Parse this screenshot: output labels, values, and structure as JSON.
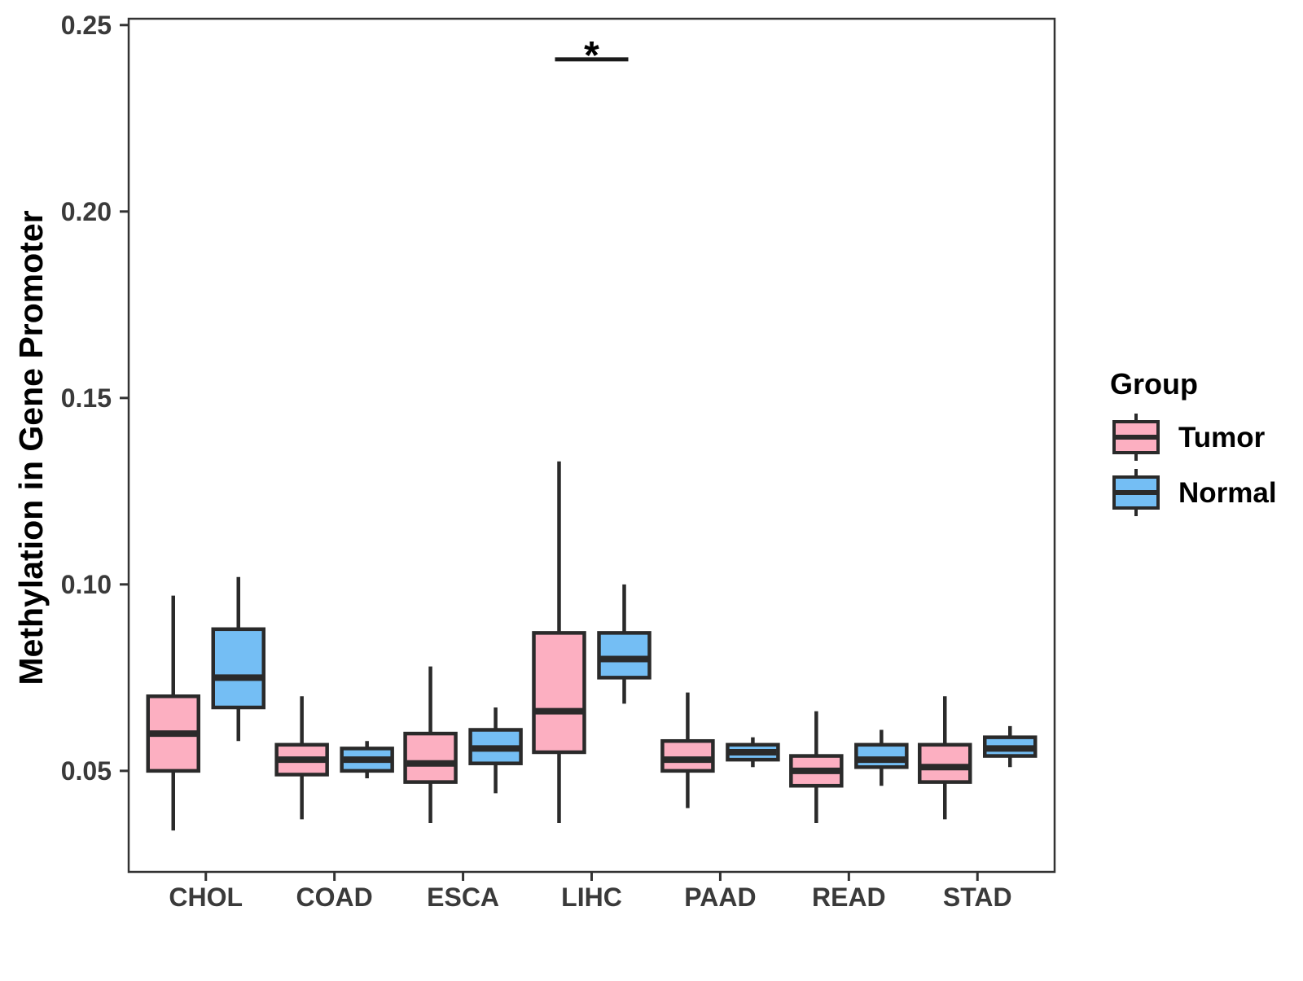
{
  "chart_data": {
    "type": "boxplot",
    "title": "",
    "xlabel": "",
    "ylabel": "Methylation in Gene Promoter",
    "categories": [
      "CHOL",
      "COAD",
      "ESCA",
      "LIHC",
      "PAAD",
      "READ",
      "STAD"
    ],
    "series": [
      {
        "name": "Tumor",
        "fill": "#FCAFC1",
        "boxes": [
          {
            "low": 0.034,
            "q1": 0.05,
            "median": 0.06,
            "q3": 0.07,
            "high": 0.097
          },
          {
            "low": 0.037,
            "q1": 0.049,
            "median": 0.053,
            "q3": 0.057,
            "high": 0.07
          },
          {
            "low": 0.036,
            "q1": 0.047,
            "median": 0.052,
            "q3": 0.06,
            "high": 0.078
          },
          {
            "low": 0.036,
            "q1": 0.055,
            "median": 0.066,
            "q3": 0.087,
            "high": 0.133
          },
          {
            "low": 0.04,
            "q1": 0.05,
            "median": 0.053,
            "q3": 0.058,
            "high": 0.071
          },
          {
            "low": 0.036,
            "q1": 0.046,
            "median": 0.05,
            "q3": 0.054,
            "high": 0.066
          },
          {
            "low": 0.037,
            "q1": 0.047,
            "median": 0.051,
            "q3": 0.057,
            "high": 0.07
          }
        ]
      },
      {
        "name": "Normal",
        "fill": "#74BEF4",
        "boxes": [
          {
            "low": 0.058,
            "q1": 0.067,
            "median": 0.075,
            "q3": 0.088,
            "high": 0.102
          },
          {
            "low": 0.048,
            "q1": 0.05,
            "median": 0.053,
            "q3": 0.056,
            "high": 0.058
          },
          {
            "low": 0.044,
            "q1": 0.052,
            "median": 0.056,
            "q3": 0.061,
            "high": 0.067
          },
          {
            "low": 0.068,
            "q1": 0.075,
            "median": 0.08,
            "q3": 0.087,
            "high": 0.1
          },
          {
            "low": 0.051,
            "q1": 0.053,
            "median": 0.055,
            "q3": 0.057,
            "high": 0.059
          },
          {
            "low": 0.046,
            "q1": 0.051,
            "median": 0.053,
            "q3": 0.057,
            "high": 0.061
          },
          {
            "low": 0.051,
            "q1": 0.054,
            "median": 0.056,
            "q3": 0.059,
            "high": 0.062
          }
        ]
      }
    ],
    "yticks": [
      0.05,
      0.1,
      0.15,
      0.2,
      0.25
    ],
    "ytick_labels": [
      "0.05",
      "0.10",
      "0.15",
      "0.20",
      "0.25"
    ],
    "ylim": [
      0.0229,
      0.2517
    ],
    "grid": false,
    "legend": {
      "title": "Group",
      "position": "right"
    },
    "annotations": [
      {
        "type": "significance-bar",
        "category": "LIHC",
        "label": "*",
        "y": 0.2408
      }
    ],
    "colors": {
      "box_stroke": "#2A2A2A",
      "axis_text": "#3A3A3A",
      "panel_border": "#333333",
      "title_text": "#000000",
      "tumor_fill": "#FCAFC1",
      "normal_fill": "#74BEF4"
    }
  }
}
